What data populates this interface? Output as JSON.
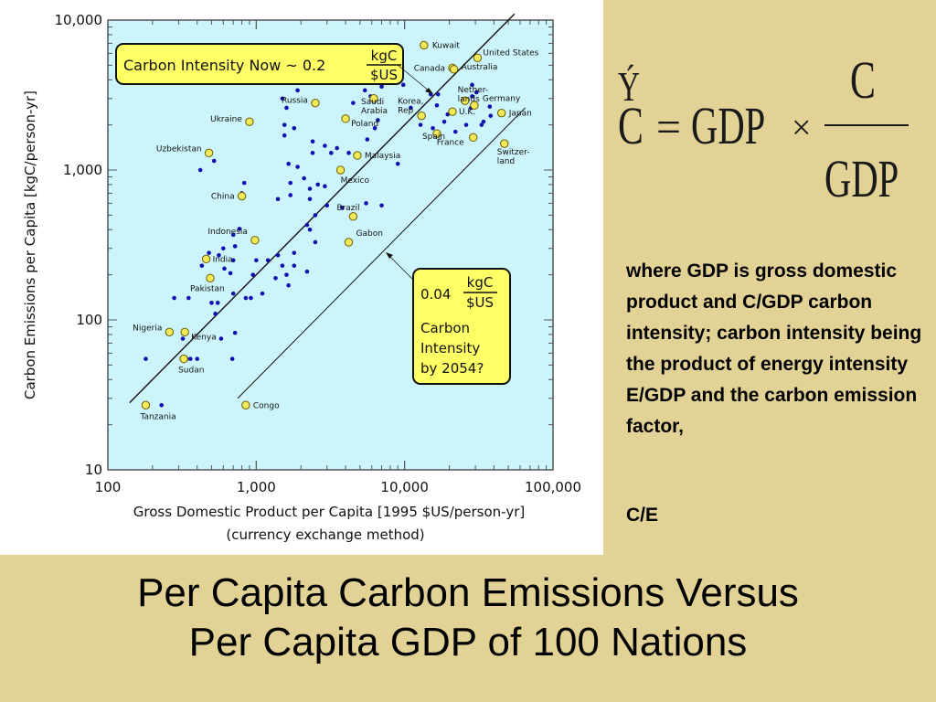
{
  "chart_data": {
    "type": "scatter",
    "title": "",
    "xlabel": "Gross Domestic Product per Capita [1995 $US/person-yr]",
    "xlabel2": "(currency exchange method)",
    "ylabel": "Carbon Emissions per Capita [kgC/person-yr]",
    "xscale": "log",
    "yscale": "log",
    "xlim": [
      100,
      100000
    ],
    "ylim": [
      10,
      10000
    ],
    "x_ticks": [
      "100",
      "1,000",
      "10,000",
      "100,000"
    ],
    "y_ticks": [
      "10",
      "100",
      "1,000",
      "10,000"
    ],
    "grid": false,
    "background_color": "#ccf5fb",
    "dot_color": "#1010b0",
    "highlight_color": "#f3ea5a",
    "labeled_points": [
      {
        "name": "Kuwait",
        "x": 13500,
        "y": 6800
      },
      {
        "name": "United States",
        "x": 31000,
        "y": 5600
      },
      {
        "name": "Canada",
        "x": 21000,
        "y": 4800
      },
      {
        "name": "Australia",
        "x": 21500,
        "y": 4700
      },
      {
        "name": "Russia",
        "x": 2500,
        "y": 2800
      },
      {
        "name": "Saudi Arabia",
        "x": 6200,
        "y": 3000
      },
      {
        "name": "Korea, Rep",
        "x": 13000,
        "y": 2300
      },
      {
        "name": "Netherlands",
        "x": 25500,
        "y": 2900
      },
      {
        "name": "Germany",
        "x": 29500,
        "y": 2700
      },
      {
        "name": "U.K.",
        "x": 21000,
        "y": 2450
      },
      {
        "name": "Japan",
        "x": 45000,
        "y": 2400
      },
      {
        "name": "Ukraine",
        "x": 900,
        "y": 2100
      },
      {
        "name": "Poland",
        "x": 4000,
        "y": 2200
      },
      {
        "name": "Spain",
        "x": 16500,
        "y": 1750
      },
      {
        "name": "France",
        "x": 29000,
        "y": 1650
      },
      {
        "name": "Switzerland",
        "x": 47000,
        "y": 1500
      },
      {
        "name": "Uzbekistan",
        "x": 480,
        "y": 1300
      },
      {
        "name": "Malaysia",
        "x": 4800,
        "y": 1250
      },
      {
        "name": "Mexico",
        "x": 3700,
        "y": 1000
      },
      {
        "name": "China",
        "x": 800,
        "y": 670
      },
      {
        "name": "Brazil",
        "x": 4500,
        "y": 490
      },
      {
        "name": "Indonesia",
        "x": 980,
        "y": 340
      },
      {
        "name": "Gabon",
        "x": 4200,
        "y": 330
      },
      {
        "name": "India",
        "x": 460,
        "y": 255
      },
      {
        "name": "Pakistan",
        "x": 490,
        "y": 190
      },
      {
        "name": "Nigeria",
        "x": 260,
        "y": 83
      },
      {
        "name": "Kenya",
        "x": 330,
        "y": 83
      },
      {
        "name": "Sudan",
        "x": 325,
        "y": 55
      },
      {
        "name": "Tanzania",
        "x": 180,
        "y": 27
      },
      {
        "name": "Congo",
        "x": 850,
        "y": 27
      }
    ],
    "other_points": [
      [
        1600,
        4300
      ],
      [
        1900,
        3400
      ],
      [
        1500,
        3000
      ],
      [
        1600,
        2600
      ],
      [
        1550,
        2000
      ],
      [
        1800,
        1900
      ],
      [
        1550,
        1700
      ],
      [
        2400,
        1550
      ],
      [
        2900,
        1450
      ],
      [
        3500,
        1400
      ],
      [
        4200,
        1300
      ],
      [
        3200,
        1300
      ],
      [
        5600,
        1600
      ],
      [
        6600,
        2150
      ],
      [
        6300,
        1900
      ],
      [
        4500,
        2800
      ],
      [
        7000,
        3600
      ],
      [
        5400,
        3400
      ],
      [
        5900,
        3100
      ],
      [
        9800,
        3700
      ],
      [
        11000,
        2600
      ],
      [
        15000,
        3200
      ],
      [
        16500,
        2700
      ],
      [
        16800,
        3200
      ],
      [
        19500,
        2350
      ],
      [
        22000,
        1800
      ],
      [
        26000,
        2000
      ],
      [
        28500,
        3100
      ],
      [
        28000,
        2600
      ],
      [
        30500,
        3300
      ],
      [
        28500,
        3700
      ],
      [
        38000,
        2300
      ],
      [
        37500,
        2650
      ],
      [
        33000,
        2000
      ],
      [
        34000,
        2100
      ],
      [
        18500,
        2100
      ],
      [
        15500,
        1900
      ],
      [
        12800,
        2000
      ],
      [
        2400,
        1300
      ],
      [
        1650,
        1100
      ],
      [
        1900,
        1050
      ],
      [
        2100,
        880
      ],
      [
        1700,
        820
      ],
      [
        2600,
        800
      ],
      [
        2900,
        780
      ],
      [
        2300,
        750
      ],
      [
        1700,
        680
      ],
      [
        1400,
        640
      ],
      [
        2300,
        640
      ],
      [
        3000,
        580
      ],
      [
        3800,
        560
      ],
      [
        5500,
        600
      ],
      [
        7000,
        580
      ],
      [
        9000,
        1100
      ],
      [
        2500,
        500
      ],
      [
        2200,
        430
      ],
      [
        2300,
        400
      ],
      [
        2500,
        330
      ],
      [
        1800,
        280
      ],
      [
        1500,
        230
      ],
      [
        1400,
        270
      ],
      [
        1200,
        250
      ],
      [
        1000,
        250
      ],
      [
        2200,
        210
      ],
      [
        1800,
        230
      ],
      [
        830,
        820
      ],
      [
        800,
        700
      ],
      [
        520,
        1150
      ],
      [
        420,
        1000
      ],
      [
        770,
        405
      ],
      [
        700,
        370
      ],
      [
        720,
        310
      ],
      [
        600,
        300
      ],
      [
        700,
        250
      ],
      [
        560,
        270
      ],
      [
        610,
        220
      ],
      [
        480,
        280
      ],
      [
        430,
        230
      ],
      [
        670,
        205
      ],
      [
        950,
        200
      ],
      [
        1600,
        200
      ],
      [
        1650,
        170
      ],
      [
        1350,
        190
      ],
      [
        920,
        140
      ],
      [
        850,
        140
      ],
      [
        1100,
        150
      ],
      [
        700,
        150
      ],
      [
        530,
        110
      ],
      [
        500,
        130
      ],
      [
        550,
        130
      ],
      [
        720,
        82
      ],
      [
        580,
        75
      ],
      [
        320,
        75
      ],
      [
        400,
        55
      ],
      [
        340,
        55
      ],
      [
        360,
        55
      ],
      [
        180,
        55
      ],
      [
        690,
        55
      ],
      [
        280,
        140
      ],
      [
        350,
        140
      ],
      [
        230,
        27
      ]
    ],
    "annotations": [
      {
        "text": "Carbon Intensity Now ~ 0.2",
        "numerator": "kgC",
        "denominator": "$US"
      },
      {
        "text": "Carbon Intensity by 2054?",
        "value": "0.04",
        "numerator": "kgC",
        "denominator": "$US"
      }
    ],
    "reference_lines": [
      {
        "intensity": 0.2,
        "x_range": [
          140,
          55000
        ]
      },
      {
        "intensity": 0.04,
        "x_range": [
          750,
          65000
        ]
      }
    ]
  },
  "annotation_now": {
    "lead": "Carbon Intensity Now ~ 0.2",
    "num": "kgC",
    "den": "$US"
  },
  "annotation_2054": {
    "value": "0.04",
    "num": "kgC",
    "den": "$US",
    "line1": "Carbon",
    "line2": "Intensity",
    "line3": "by 2054?"
  },
  "equation": {
    "lhs": "C",
    "lhs_accent": "Ý",
    "equals": "=",
    "gdp": "GDP",
    "times": "×",
    "frac_num": "C",
    "frac_den": "GDP"
  },
  "note": {
    "text": "where GDP is gross domestic product and C/GDP carbon intensity; carbon intensity being the product of energy intensity E/GDP and the carbon emission factor,",
    "formula": "C/E"
  },
  "slide_title": {
    "line1": "Per Capita Carbon Emissions Versus",
    "line2": "Per Capita GDP of 100 Nations"
  }
}
